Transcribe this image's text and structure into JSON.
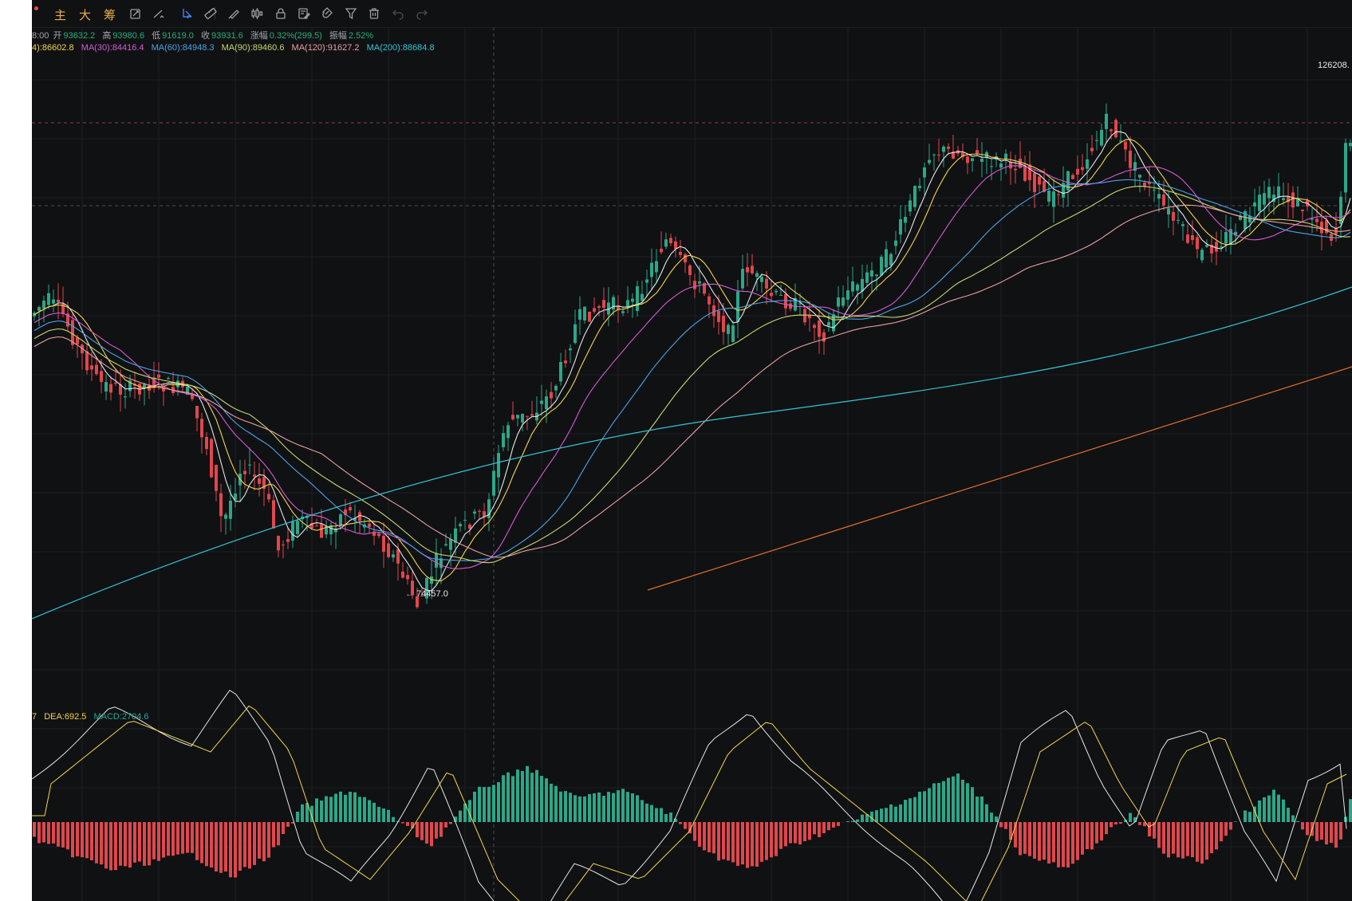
{
  "toolbar": {
    "buttons": [
      {
        "label": "主",
        "name": "main-indicator-button"
      },
      {
        "label": "大",
        "name": "large-order-button"
      },
      {
        "label": "筹",
        "name": "chip-distribution-button"
      }
    ],
    "icons": [
      "rotate-icon",
      "draw-line-icon",
      "select-cursor-icon",
      "ruler-icon",
      "brush-icon",
      "candles-icon",
      "lock-icon",
      "edit-list-icon",
      "magnet-icon",
      "filter-icon",
      "trash-icon",
      "undo-icon",
      "redo-icon"
    ]
  },
  "ohlc": {
    "time": "8:00",
    "open_label": "开",
    "open": "93632.2",
    "high_label": "高",
    "high": "93980.6",
    "low_label": "低",
    "low": "91619.0",
    "close_label": "收",
    "close": "93931.6",
    "change_label": "涨幅",
    "change": "0.32%(299.5)",
    "amplitude_label": "振幅",
    "amplitude": "2.52%"
  },
  "ma_legend": [
    {
      "label": "4):86602.8",
      "color": "#f2d64b"
    },
    {
      "label": "MA(30):84416.4",
      "color": "#d65ad6"
    },
    {
      "label": "MA(60):84948.3",
      "color": "#4aa3e8"
    },
    {
      "label": "MA(90):89460.6",
      "color": "#c8d870"
    },
    {
      "label": "MA(120):91627.2",
      "color": "#e8a0a0"
    },
    {
      "label": "MA(200):88684.8",
      "color": "#35c6d6"
    }
  ],
  "macd_legend": [
    {
      "label": "7",
      "color": "#f2d64b"
    },
    {
      "label": "DEA:692.5",
      "color": "#f2d64b"
    },
    {
      "label": "MACD:2704.6",
      "color": "#26a69a"
    }
  ],
  "price_labels": {
    "high": "126208.",
    "low": "74457.0"
  },
  "colors": {
    "background": "#101113",
    "up": "#2aa889",
    "down": "#e0474c",
    "grid": "#1e2024"
  }
}
